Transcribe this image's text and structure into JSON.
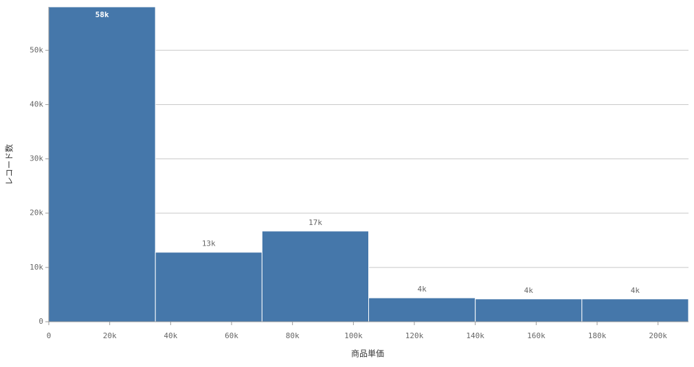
{
  "chart_data": {
    "type": "histogram",
    "x_label": "商品単価",
    "y_label": "レコード数",
    "bins": [
      0,
      35000,
      70000,
      105000,
      140000,
      175000,
      210000
    ],
    "values": [
      58000,
      12800,
      16700,
      4400,
      4200,
      4200
    ],
    "value_labels": [
      "58k",
      "13k",
      "17k",
      "4k",
      "4k",
      "4k"
    ],
    "color": "#4577aa",
    "xlim": [
      0,
      210000
    ],
    "xticks": [
      0,
      {
        "value": 20000,
        "label": "20k"
      },
      {
        "value": 40000,
        "label": "40k"
      },
      {
        "value": 60000,
        "label": "60k"
      },
      {
        "value": 80000,
        "label": "80k"
      },
      {
        "value": 100000,
        "label": "100k"
      },
      {
        "value": 120000,
        "label": "120k"
      },
      {
        "value": 140000,
        "label": "140k"
      },
      {
        "value": 160000,
        "label": "160k"
      },
      {
        "value": 180000,
        "label": "180k"
      },
      {
        "value": 200000,
        "label": "200k"
      }
    ],
    "ylim": [
      0,
      58000
    ],
    "yticks": [
      0,
      {
        "value": 10000,
        "label": "10k"
      },
      {
        "value": 20000,
        "label": "20k"
      },
      {
        "value": 30000,
        "label": "30k"
      },
      {
        "value": 40000,
        "label": "40k"
      },
      {
        "value": 50000,
        "label": "50k"
      }
    ],
    "grid": true
  }
}
